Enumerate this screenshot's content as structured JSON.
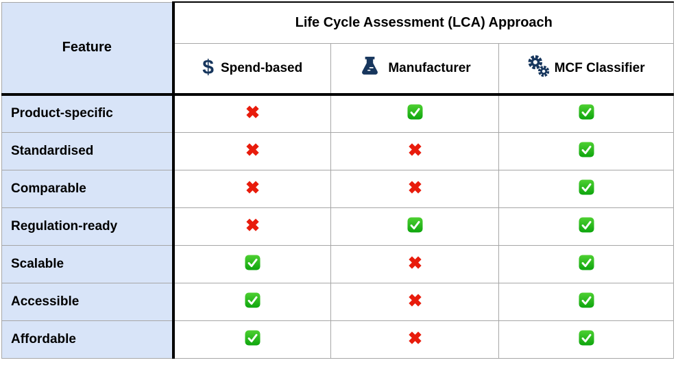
{
  "table": {
    "feature_header": "Feature",
    "group_header": "Life Cycle Assessment (LCA) Approach",
    "columns": [
      {
        "label": "Spend-based",
        "icon": "dollar-icon"
      },
      {
        "label": "Manufacturer",
        "icon": "flask-icon"
      },
      {
        "label": "MCF Classifier",
        "icon": "gears-icon"
      }
    ],
    "rows": [
      {
        "feature": "Product-specific",
        "values": [
          "no",
          "yes",
          "yes"
        ]
      },
      {
        "feature": "Standardised",
        "values": [
          "no",
          "no",
          "yes"
        ]
      },
      {
        "feature": "Comparable",
        "values": [
          "no",
          "no",
          "yes"
        ]
      },
      {
        "feature": "Regulation-ready",
        "values": [
          "no",
          "yes",
          "yes"
        ]
      },
      {
        "feature": "Scalable",
        "values": [
          "yes",
          "no",
          "yes"
        ]
      },
      {
        "feature": "Accessible",
        "values": [
          "yes",
          "no",
          "yes"
        ]
      },
      {
        "feature": "Affordable",
        "values": [
          "yes",
          "no",
          "yes"
        ]
      }
    ],
    "colors": {
      "feature_bg": "#d8e4f8",
      "icon_navy": "#17365d",
      "check_green_top": "#4ed032",
      "check_green_bottom": "#0da50d",
      "cross_red": "#e81c0c",
      "grid_line": "#a6a6a6",
      "heavy_line": "#000000"
    }
  }
}
